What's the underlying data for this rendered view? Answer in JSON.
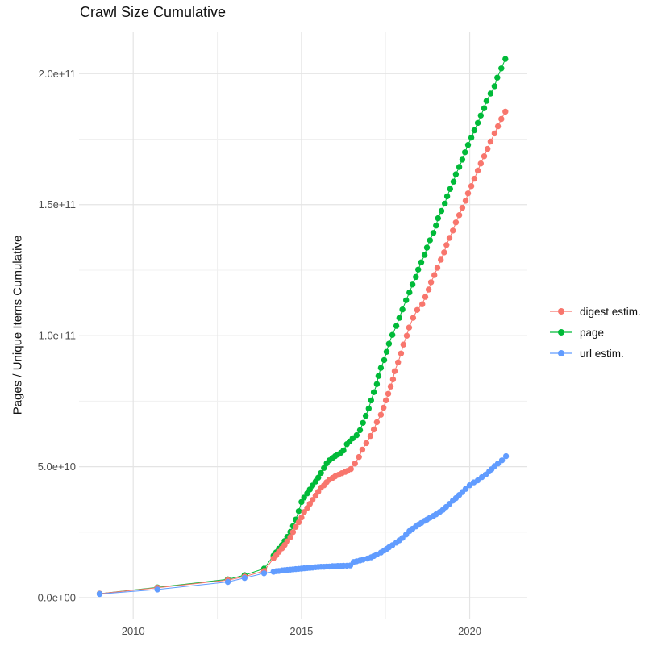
{
  "chart_data": {
    "type": "scatter",
    "title": "Crawl Size Cumulative",
    "xlabel": "",
    "ylabel": "Pages / Unique Items Cumulative",
    "legend_position": "right",
    "grid": true,
    "background": "#ffffff",
    "grid_major_color": "#e4e4e4",
    "grid_minor_color": "#f0f0f0",
    "tick_label_color": "#4d4d4d",
    "text_color": "#111111",
    "value_unit": "1e9",
    "xlim": [
      2008.39,
      2021.7
    ],
    "ylim_e9": [
      -8,
      215.8
    ],
    "x_ticks": [
      {
        "value": 2010,
        "label": "2010"
      },
      {
        "value": 2015,
        "label": "2015"
      },
      {
        "value": 2020,
        "label": "2020"
      }
    ],
    "x_minor": [
      2012.5,
      2017.5
    ],
    "y_ticks": [
      {
        "value_e9": 0,
        "label": "0.0e+00"
      },
      {
        "value_e9": 50,
        "label": "5.0e+10"
      },
      {
        "value_e9": 100,
        "label": "1.0e+11"
      },
      {
        "value_e9": 150,
        "label": "1.5e+11"
      },
      {
        "value_e9": 200,
        "label": "2.0e+11"
      }
    ],
    "y_minor_e9": [
      25,
      75,
      125,
      175
    ],
    "legend_order": [
      "digest estim.",
      "page",
      "url estim."
    ],
    "series": [
      {
        "name": "page",
        "color": "#00BA38",
        "points": [
          [
            2009.0,
            1.5
          ],
          [
            2010.72,
            3.9
          ],
          [
            2012.81,
            7.0
          ],
          [
            2013.31,
            8.6
          ],
          [
            2013.89,
            11.1
          ],
          [
            2014.17,
            16.0
          ],
          [
            2014.25,
            17.3
          ],
          [
            2014.33,
            18.7
          ],
          [
            2014.42,
            20.1
          ],
          [
            2014.5,
            21.6
          ],
          [
            2014.58,
            23.2
          ],
          [
            2014.67,
            25.1
          ],
          [
            2014.75,
            27.3
          ],
          [
            2014.83,
            29.8
          ],
          [
            2014.92,
            33.0
          ],
          [
            2015.0,
            36.5
          ],
          [
            2015.08,
            38.2
          ],
          [
            2015.17,
            39.8
          ],
          [
            2015.25,
            41.3
          ],
          [
            2015.33,
            42.8
          ],
          [
            2015.42,
            44.3
          ],
          [
            2015.5,
            45.8
          ],
          [
            2015.58,
            47.6
          ],
          [
            2015.67,
            49.5
          ],
          [
            2015.75,
            51.3
          ],
          [
            2015.83,
            52.4
          ],
          [
            2015.92,
            53.3
          ],
          [
            2016.0,
            54.0
          ],
          [
            2016.08,
            54.6
          ],
          [
            2016.17,
            55.3
          ],
          [
            2016.25,
            56.2
          ],
          [
            2016.35,
            58.6
          ],
          [
            2016.43,
            59.6
          ],
          [
            2016.52,
            60.8
          ],
          [
            2016.64,
            62.0
          ],
          [
            2016.74,
            63.9
          ],
          [
            2016.83,
            66.7
          ],
          [
            2016.91,
            69.4
          ],
          [
            2017.0,
            72.2
          ],
          [
            2017.07,
            75.3
          ],
          [
            2017.15,
            78.4
          ],
          [
            2017.24,
            81.5
          ],
          [
            2017.29,
            84.6
          ],
          [
            2017.36,
            87.7
          ],
          [
            2017.46,
            90.7
          ],
          [
            2017.53,
            93.8
          ],
          [
            2017.6,
            96.9
          ],
          [
            2017.7,
            100.3
          ],
          [
            2017.82,
            103.7
          ],
          [
            2017.91,
            106.8
          ],
          [
            2018.0,
            110.0
          ],
          [
            2018.11,
            113.5
          ],
          [
            2018.21,
            116.5
          ],
          [
            2018.3,
            119.5
          ],
          [
            2018.4,
            122.4
          ],
          [
            2018.47,
            125.2
          ],
          [
            2018.56,
            128.0
          ],
          [
            2018.66,
            130.8
          ],
          [
            2018.73,
            133.6
          ],
          [
            2018.82,
            136.4
          ],
          [
            2018.92,
            139.2
          ],
          [
            2019.0,
            142.0
          ],
          [
            2019.06,
            144.8
          ],
          [
            2019.16,
            147.6
          ],
          [
            2019.26,
            150.4
          ],
          [
            2019.33,
            153.2
          ],
          [
            2019.42,
            156.0
          ],
          [
            2019.52,
            158.8
          ],
          [
            2019.59,
            161.6
          ],
          [
            2019.69,
            164.4
          ],
          [
            2019.78,
            167.2
          ],
          [
            2019.86,
            170.0
          ],
          [
            2019.95,
            172.8
          ],
          [
            2020.05,
            175.6
          ],
          [
            2020.14,
            178.4
          ],
          [
            2020.24,
            181.2
          ],
          [
            2020.33,
            184.0
          ],
          [
            2020.43,
            186.8
          ],
          [
            2020.5,
            189.6
          ],
          [
            2020.62,
            192.4
          ],
          [
            2020.74,
            195.2
          ],
          [
            2020.82,
            198.5
          ],
          [
            2020.94,
            202.0
          ],
          [
            2021.06,
            205.6
          ]
        ]
      },
      {
        "name": "digest estim.",
        "color": "#F8766D",
        "points": [
          [
            2009.0,
            1.5
          ],
          [
            2010.72,
            3.8
          ],
          [
            2012.81,
            6.7
          ],
          [
            2013.31,
            8.0
          ],
          [
            2013.89,
            10.2
          ],
          [
            2014.17,
            15.0
          ],
          [
            2014.25,
            16.2
          ],
          [
            2014.33,
            17.5
          ],
          [
            2014.42,
            18.8
          ],
          [
            2014.5,
            20.1
          ],
          [
            2014.58,
            21.5
          ],
          [
            2014.67,
            23.1
          ],
          [
            2014.75,
            25.0
          ],
          [
            2014.83,
            27.0
          ],
          [
            2014.92,
            28.8
          ],
          [
            2015.0,
            30.6
          ],
          [
            2015.08,
            32.7
          ],
          [
            2015.17,
            34.2
          ],
          [
            2015.25,
            35.8
          ],
          [
            2015.33,
            37.3
          ],
          [
            2015.42,
            38.9
          ],
          [
            2015.5,
            40.4
          ],
          [
            2015.58,
            42.0
          ],
          [
            2015.67,
            42.9
          ],
          [
            2015.75,
            44.1
          ],
          [
            2015.83,
            45.0
          ],
          [
            2015.92,
            45.7
          ],
          [
            2016.0,
            46.3
          ],
          [
            2016.1,
            46.9
          ],
          [
            2016.2,
            47.5
          ],
          [
            2016.3,
            48.0
          ],
          [
            2016.37,
            48.4
          ],
          [
            2016.47,
            49.1
          ],
          [
            2016.59,
            51.2
          ],
          [
            2016.71,
            53.7
          ],
          [
            2016.81,
            56.5
          ],
          [
            2016.93,
            59.0
          ],
          [
            2017.05,
            61.7
          ],
          [
            2017.15,
            64.2
          ],
          [
            2017.24,
            67.0
          ],
          [
            2017.36,
            69.8
          ],
          [
            2017.44,
            72.5
          ],
          [
            2017.51,
            75.3
          ],
          [
            2017.58,
            77.8
          ],
          [
            2017.65,
            80.6
          ],
          [
            2017.72,
            83.3
          ],
          [
            2017.77,
            86.4
          ],
          [
            2017.87,
            89.8
          ],
          [
            2017.96,
            93.2
          ],
          [
            2018.03,
            96.6
          ],
          [
            2018.13,
            100.0
          ],
          [
            2018.2,
            103.1
          ],
          [
            2018.32,
            106.8
          ],
          [
            2018.44,
            109.8
          ],
          [
            2018.59,
            112.0
          ],
          [
            2018.68,
            114.8
          ],
          [
            2018.78,
            117.6
          ],
          [
            2018.85,
            120.4
          ],
          [
            2018.95,
            123.1
          ],
          [
            2019.04,
            125.9
          ],
          [
            2019.14,
            129.0
          ],
          [
            2019.24,
            131.8
          ],
          [
            2019.31,
            134.6
          ],
          [
            2019.4,
            137.3
          ],
          [
            2019.5,
            140.1
          ],
          [
            2019.59,
            143.2
          ],
          [
            2019.69,
            146.0
          ],
          [
            2019.78,
            148.8
          ],
          [
            2019.88,
            151.5
          ],
          [
            2019.95,
            154.3
          ],
          [
            2020.05,
            157.1
          ],
          [
            2020.14,
            159.9
          ],
          [
            2020.24,
            163.0
          ],
          [
            2020.33,
            165.7
          ],
          [
            2020.43,
            168.5
          ],
          [
            2020.53,
            171.3
          ],
          [
            2020.62,
            174.1
          ],
          [
            2020.74,
            177.2
          ],
          [
            2020.84,
            179.9
          ],
          [
            2020.94,
            182.7
          ],
          [
            2021.06,
            185.5
          ]
        ]
      },
      {
        "name": "url estim.",
        "color": "#619CFF",
        "points": [
          [
            2009.0,
            1.4
          ],
          [
            2010.72,
            3.1
          ],
          [
            2012.81,
            6.0
          ],
          [
            2013.31,
            7.5
          ],
          [
            2013.89,
            9.3
          ],
          [
            2014.17,
            9.9
          ],
          [
            2014.25,
            10.1
          ],
          [
            2014.33,
            10.2
          ],
          [
            2014.42,
            10.4
          ],
          [
            2014.5,
            10.5
          ],
          [
            2014.58,
            10.6
          ],
          [
            2014.67,
            10.7
          ],
          [
            2014.75,
            10.8
          ],
          [
            2014.83,
            10.9
          ],
          [
            2014.92,
            11.0
          ],
          [
            2015.0,
            11.1
          ],
          [
            2015.08,
            11.2
          ],
          [
            2015.17,
            11.3
          ],
          [
            2015.25,
            11.4
          ],
          [
            2015.33,
            11.5
          ],
          [
            2015.42,
            11.6
          ],
          [
            2015.5,
            11.7
          ],
          [
            2015.58,
            11.8
          ],
          [
            2015.67,
            11.8
          ],
          [
            2015.75,
            11.9
          ],
          [
            2015.83,
            11.9
          ],
          [
            2015.92,
            12.0
          ],
          [
            2016.0,
            12.0
          ],
          [
            2016.08,
            12.1
          ],
          [
            2016.17,
            12.1
          ],
          [
            2016.25,
            12.2
          ],
          [
            2016.35,
            12.2
          ],
          [
            2016.45,
            12.3
          ],
          [
            2016.55,
            13.6
          ],
          [
            2016.64,
            13.9
          ],
          [
            2016.74,
            14.2
          ],
          [
            2016.83,
            14.5
          ],
          [
            2016.96,
            14.9
          ],
          [
            2017.07,
            15.4
          ],
          [
            2017.15,
            15.9
          ],
          [
            2017.24,
            16.5
          ],
          [
            2017.36,
            17.2
          ],
          [
            2017.46,
            18.0
          ],
          [
            2017.53,
            18.6
          ],
          [
            2017.6,
            19.2
          ],
          [
            2017.7,
            20.0
          ],
          [
            2017.82,
            21.0
          ],
          [
            2017.91,
            21.9
          ],
          [
            2018.0,
            22.8
          ],
          [
            2018.11,
            24.1
          ],
          [
            2018.21,
            25.4
          ],
          [
            2018.3,
            26.3
          ],
          [
            2018.4,
            27.2
          ],
          [
            2018.47,
            27.8
          ],
          [
            2018.56,
            28.5
          ],
          [
            2018.66,
            29.3
          ],
          [
            2018.73,
            29.8
          ],
          [
            2018.82,
            30.5
          ],
          [
            2018.92,
            31.2
          ],
          [
            2019.0,
            31.8
          ],
          [
            2019.11,
            32.7
          ],
          [
            2019.2,
            33.5
          ],
          [
            2019.3,
            34.6
          ],
          [
            2019.4,
            35.8
          ],
          [
            2019.5,
            37.0
          ],
          [
            2019.59,
            38.0
          ],
          [
            2019.69,
            39.2
          ],
          [
            2019.78,
            40.3
          ],
          [
            2019.88,
            41.5
          ],
          [
            2020.0,
            42.9
          ],
          [
            2020.12,
            44.0
          ],
          [
            2020.24,
            44.8
          ],
          [
            2020.36,
            46.0
          ],
          [
            2020.48,
            47.0
          ],
          [
            2020.58,
            48.2
          ],
          [
            2020.65,
            49.0
          ],
          [
            2020.74,
            50.2
          ],
          [
            2020.84,
            51.2
          ],
          [
            2020.96,
            52.4
          ],
          [
            2021.08,
            54.0
          ]
        ]
      }
    ]
  }
}
